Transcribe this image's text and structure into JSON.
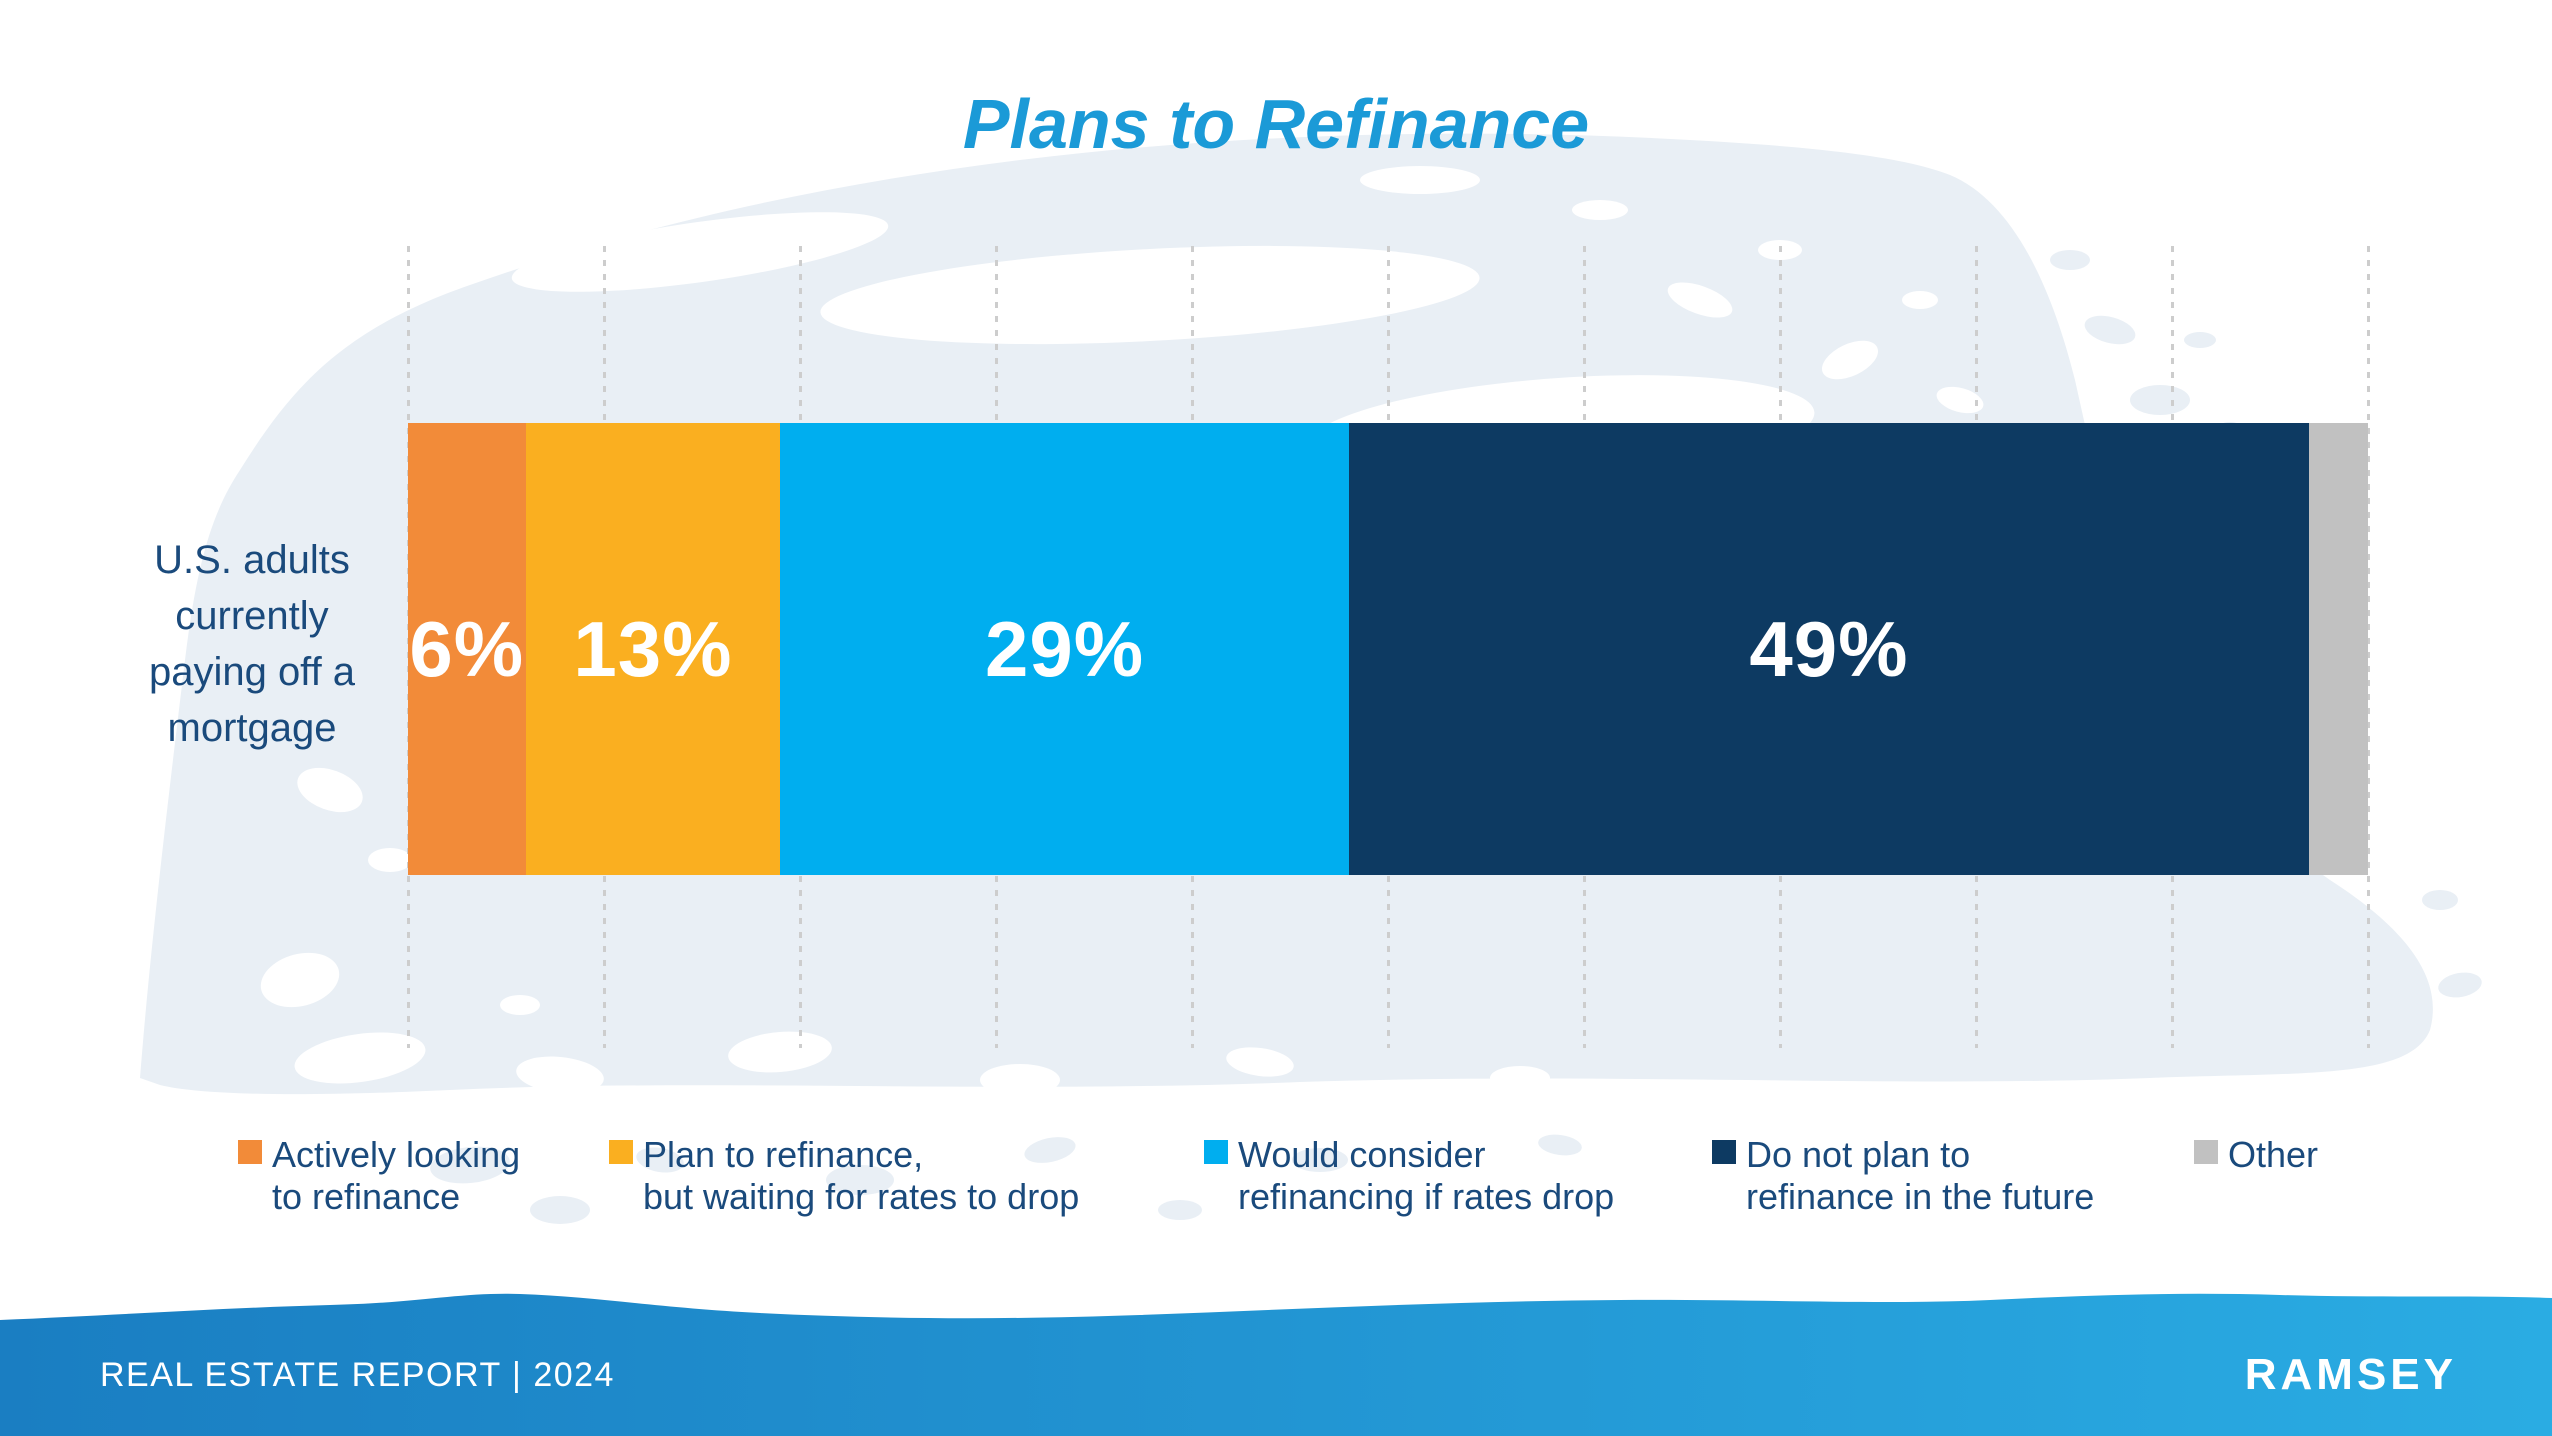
{
  "chart_data": {
    "type": "bar",
    "orientation": "horizontal",
    "stacked": true,
    "title": "Plans to Refinance",
    "category": "U.S. adults currently paying off a mortgage",
    "category_lines": [
      "U.S. adults",
      "currently",
      "paying off a",
      "mortgage"
    ],
    "axis": {
      "min": 0,
      "max": 100,
      "gridline_step": 10,
      "gridlines_shown": true,
      "tick_labels_shown": false
    },
    "series": [
      {
        "name": "Actively looking to refinance",
        "value": 6,
        "unit": "%",
        "bar_label": "6%",
        "color": "#F28B39",
        "legend_lines": [
          "Actively looking",
          "to refinance"
        ]
      },
      {
        "name": "Plan to refinance, but waiting for rates to drop",
        "value": 13,
        "unit": "%",
        "bar_label": "13%",
        "color": "#FAAF20",
        "legend_lines": [
          "Plan to refinance,",
          "but waiting for rates to drop"
        ]
      },
      {
        "name": "Would consider refinancing if rates drop",
        "value": 29,
        "unit": "%",
        "bar_label": "29%",
        "color": "#00AEEF",
        "legend_lines": [
          "Would consider",
          "refinancing if rates drop"
        ]
      },
      {
        "name": "Do not plan to refinance in the future",
        "value": 49,
        "unit": "%",
        "bar_label": "49%",
        "color": "#0D3A62",
        "legend_lines": [
          "Do not plan to",
          "refinance in the future"
        ]
      },
      {
        "name": "Other",
        "value": 3,
        "unit": "%",
        "bar_label": "",
        "color": "#C1C1C1",
        "legend_lines": [
          "Other"
        ]
      }
    ],
    "legend_position": "bottom"
  },
  "footer": {
    "report_label": "REAL ESTATE REPORT | 2024",
    "brand": "RAMSEY"
  },
  "colors": {
    "title_text": "#1B9AD7",
    "body_text": "#1A4A7C",
    "bar_label_text": "#FFFFFF",
    "gridline": "#CDCDCD",
    "wash": "#E9EFF5",
    "footer_gradient_left": "#1A7EC2",
    "footer_gradient_right": "#2AACE3",
    "footer_text": "#FFFFFF"
  }
}
